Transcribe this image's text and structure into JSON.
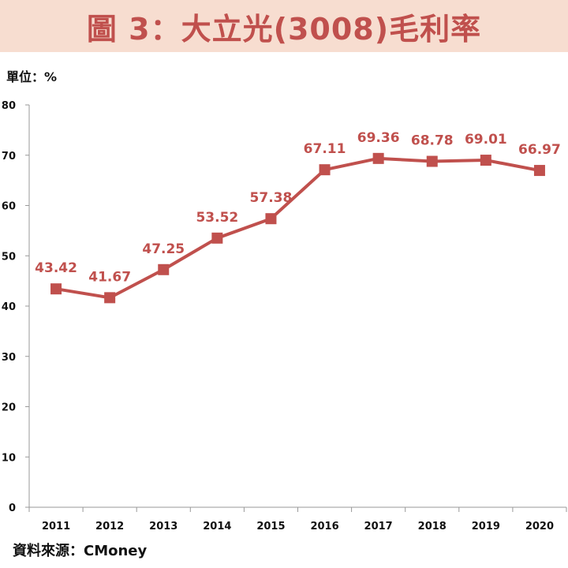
{
  "title": "圖 3：大立光(3008)毛利率",
  "unit": "單位：%",
  "source": "資料來源：CMoney",
  "colors": {
    "accent": "#c0504d",
    "title_bg": "#f7ddd0",
    "axis": "#999999"
  },
  "chart_data": {
    "type": "line",
    "title": "圖 3：大立光(3008)毛利率",
    "xlabel": "",
    "ylabel": "單位：%",
    "categories": [
      "2011",
      "2012",
      "2013",
      "2014",
      "2015",
      "2016",
      "2017",
      "2018",
      "2019",
      "2020"
    ],
    "values": [
      43.42,
      41.67,
      47.25,
      53.52,
      57.38,
      67.11,
      69.36,
      68.78,
      69.01,
      66.97
    ],
    "value_labels": [
      "43.42",
      "41.67",
      "47.25",
      "53.52",
      "57.38",
      "67.11",
      "69.36",
      "68.78",
      "69.01",
      "66.97"
    ],
    "yticks": [
      "0",
      "10",
      "20",
      "30",
      "40",
      "50",
      "60",
      "70",
      "80"
    ],
    "ylim": [
      0,
      80
    ],
    "grid": false,
    "marker": "square"
  }
}
